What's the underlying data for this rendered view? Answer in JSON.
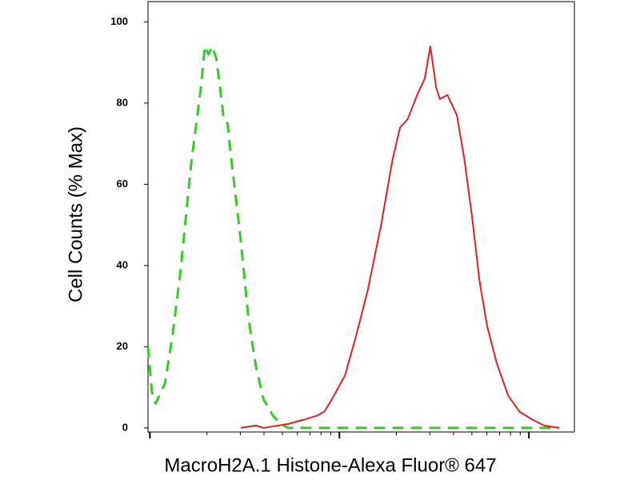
{
  "chart_data": {
    "type": "line",
    "xlabel": "MacroH2A.1 Histone-Alexa Fluor® 647",
    "ylabel": "Cell Counts (% Max)",
    "xlim": [
      -0.01,
      2.24
    ],
    "xticks": [
      0,
      1,
      2
    ],
    "xscale": "log-decades",
    "ylim": [
      -1,
      105
    ],
    "yticks": [
      0,
      20,
      40,
      60,
      80,
      100
    ],
    "series": [
      {
        "color": "#33cc22",
        "dash": true,
        "x": [
          -0.01,
          0.01,
          0.03,
          0.08,
          0.12,
          0.16,
          0.22,
          0.27,
          0.29,
          0.31,
          0.33,
          0.35,
          0.37,
          0.39,
          0.41,
          0.43,
          0.48,
          0.52,
          0.56,
          0.6,
          0.65,
          0.69,
          0.73,
          2.16
        ],
        "values": [
          20,
          9,
          6,
          11,
          23,
          38,
          66,
          84,
          94,
          92,
          94,
          91,
          84,
          76,
          75,
          66,
          46,
          27,
          15,
          7,
          3,
          1,
          0,
          0
        ]
      },
      {
        "color": "#e02020",
        "dash": false,
        "x": [
          0.48,
          0.56,
          0.6,
          0.73,
          0.81,
          0.88,
          0.92,
          0.96,
          1.03,
          1.09,
          1.15,
          1.22,
          1.28,
          1.32,
          1.36,
          1.41,
          1.45,
          1.48,
          1.51,
          1.53,
          1.57,
          1.62,
          1.66,
          1.7,
          1.74,
          1.78,
          1.83,
          1.89,
          1.95,
          2.02,
          2.08,
          2.16
        ],
        "values": [
          0,
          0.6,
          0,
          1,
          2,
          3,
          4,
          7,
          13,
          23,
          34,
          50,
          66,
          74,
          76,
          82,
          86,
          94,
          84,
          81,
          82,
          77,
          66,
          52,
          36,
          25,
          16,
          8,
          4,
          2,
          0.6,
          0
        ]
      }
    ]
  }
}
